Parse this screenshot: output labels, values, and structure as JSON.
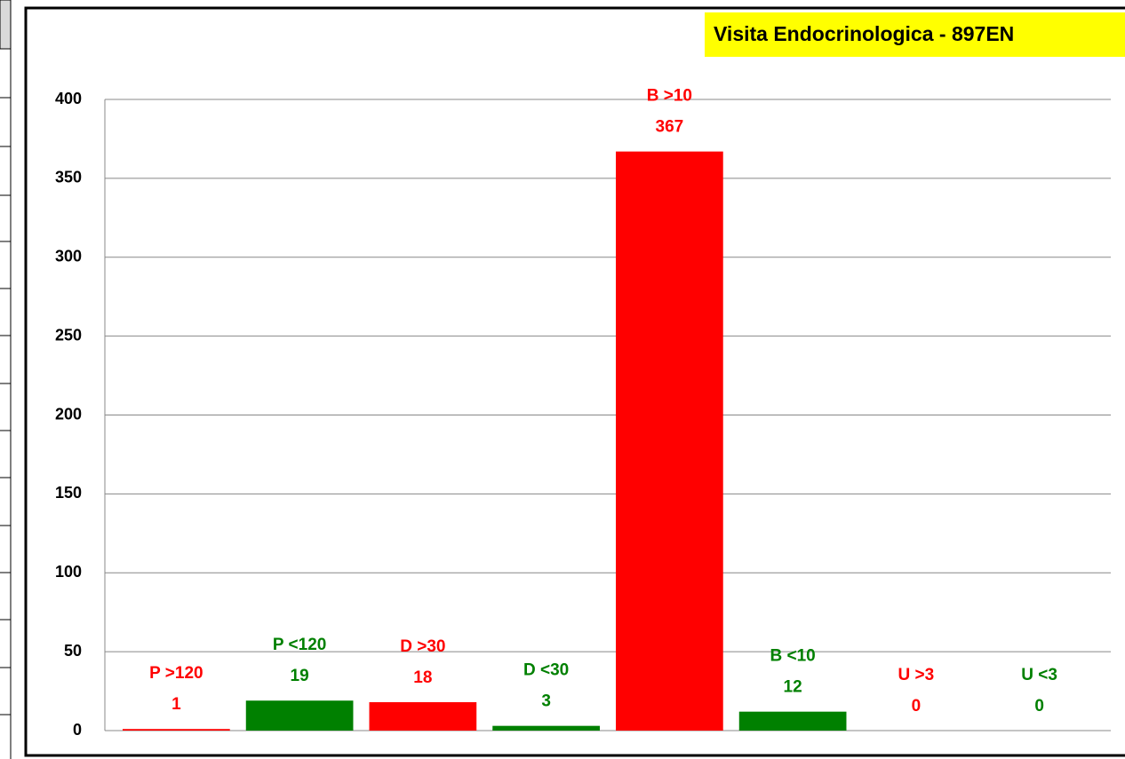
{
  "chart_data": {
    "type": "bar",
    "title": "Visita Endocrinologica - 897EN",
    "categories": [
      "P  >120",
      "P  <120",
      "D  >30",
      "D  <30",
      "B  >10",
      "B  <10",
      "U  >3",
      "U  <3"
    ],
    "values": [
      1,
      19,
      18,
      3,
      367,
      12,
      0,
      0
    ],
    "colors": [
      "#ff0000",
      "#008000",
      "#ff0000",
      "#008000",
      "#ff0000",
      "#008000",
      "#ff0000",
      "#008000"
    ],
    "ylim": [
      0,
      400
    ],
    "yticks": [
      0,
      50,
      100,
      150,
      200,
      250,
      300,
      350,
      400
    ],
    "grid": true
  }
}
